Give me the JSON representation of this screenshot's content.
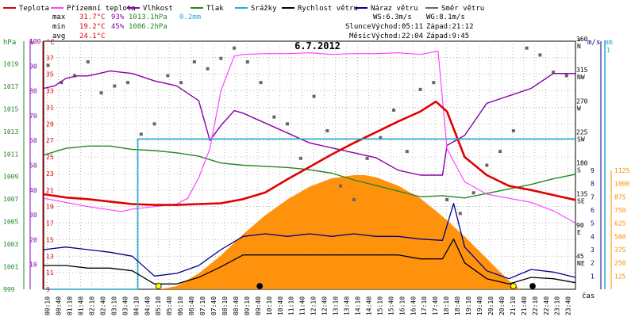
{
  "chart_data": {
    "type": "line",
    "title": "6.7.2012",
    "x_label": "čas",
    "x_ticks": [
      "00:10",
      "00:40",
      "01:10",
      "01:40",
      "02:10",
      "02:40",
      "03:10",
      "03:40",
      "04:10",
      "04:40",
      "05:10",
      "05:40",
      "06:10",
      "06:40",
      "07:10",
      "07:40",
      "08:10",
      "08:40",
      "09:10",
      "09:40",
      "10:10",
      "10:40",
      "11:10",
      "11:40",
      "12:10",
      "12:40",
      "13:10",
      "13:40",
      "14:10",
      "14:40",
      "15:10",
      "15:40",
      "16:10",
      "16:40",
      "17:10",
      "17:40",
      "18:10",
      "18:40",
      "19:10",
      "19:40",
      "20:10",
      "20:40",
      "21:10",
      "21:40",
      "22:10",
      "22:40",
      "23:10",
      "23:40"
    ],
    "legend": [
      {
        "name": "Teplota",
        "color": "#e00000"
      },
      {
        "name": "Přízemní teplota",
        "color": "#ff44ff"
      },
      {
        "name": "Vlhkost",
        "color": "#8800aa"
      },
      {
        "name": "Tlak",
        "color": "#228822"
      },
      {
        "name": "Srážky",
        "color": "#22aacc"
      },
      {
        "name": "Rychlost větru",
        "color": "#000000"
      },
      {
        "name": "Náraz větru",
        "color": "#000088"
      },
      {
        "name": "Směr větru",
        "color": "#666666"
      }
    ],
    "stats": {
      "max": {
        "label": "max",
        "temp": "31.7°C",
        "hum": "93%",
        "press": "1013.1hPa",
        "rain": "0.2mm"
      },
      "min": {
        "label": "min",
        "temp": "19.2°C",
        "hum": "45%",
        "press": "1006.2hPa"
      },
      "avg": {
        "label": "avg",
        "temp": "24.1°C"
      }
    },
    "info": {
      "ws": "WS:6.3m/s",
      "wg": "WG:8.1m/s",
      "sun_label": "Slunce",
      "sun_rise": "Východ:05:11",
      "sun_set": "Západ:21:12",
      "moon_label": "Měsíc",
      "moon_rise": "Východ:22:04",
      "moon_set": "Západ:9:45"
    },
    "axes": {
      "pressure": {
        "unit": "hPa",
        "min": 999,
        "max": 1021,
        "ticks": [
          999,
          1001,
          1003,
          1005,
          1007,
          1009,
          1011,
          1013,
          1015,
          1017,
          1019
        ]
      },
      "humidity": {
        "unit": "%",
        "min": 0,
        "max": 100,
        "ticks": [
          10,
          20,
          30,
          40,
          50,
          60,
          70,
          80,
          90,
          100
        ]
      },
      "temperature": {
        "unit": "°C",
        "min": 9,
        "max": 39,
        "ticks": [
          9,
          11,
          13,
          15,
          17,
          19,
          21,
          23,
          25,
          27,
          29,
          31,
          33,
          35,
          37
        ]
      },
      "direction": {
        "unit": "°",
        "ticks": [
          {
            "v": "45",
            "d": "NE"
          },
          {
            "v": "90",
            "d": "E"
          },
          {
            "v": "135",
            "d": "SE"
          },
          {
            "v": "180",
            "d": "S"
          },
          {
            "v": "225",
            "d": "SW"
          },
          {
            "v": "270",
            "d": "W"
          },
          {
            "v": "315",
            "d": "NW"
          },
          {
            "v": "360",
            "d": "N"
          }
        ]
      },
      "wind": {
        "unit": "m/s",
        "min": 0,
        "max": 9,
        "ticks": [
          1,
          2,
          3,
          4,
          5,
          6,
          7,
          8,
          9
        ]
      },
      "rain": {
        "unit": "mm",
        "max_label": "1"
      },
      "solar": {
        "min": 0,
        "max": 1125,
        "ticks": [
          125,
          250,
          375,
          500,
          625,
          750,
          875,
          1000,
          1125
        ]
      }
    },
    "series": {
      "temperature": {
        "name": "Teplota",
        "color": "#e00000",
        "x": [
          0,
          1,
          2,
          3,
          4,
          5,
          6,
          7,
          8,
          9,
          10,
          11,
          12,
          13,
          14,
          15,
          16,
          17,
          17.7,
          18.2,
          19,
          20,
          21,
          22,
          23,
          24
        ],
        "y": [
          20.5,
          20.1,
          19.9,
          19.6,
          19.3,
          19.2,
          19.2,
          19.3,
          19.4,
          19.9,
          20.7,
          22.3,
          23.8,
          25.3,
          26.7,
          28.0,
          29.3,
          30.5,
          31.7,
          30.5,
          25.0,
          22.8,
          21.5,
          21.0,
          20.4,
          19.8
        ]
      },
      "ground_temperature": {
        "name": "Přízemní teplota",
        "color": "#ff44ff",
        "x": [
          0,
          1,
          2,
          3,
          3.5,
          4,
          5,
          6,
          6.5,
          7,
          7.5,
          8,
          8.6,
          9,
          10,
          11,
          12,
          13,
          14,
          15,
          16,
          17,
          17.8,
          18.2,
          19,
          20,
          21,
          22,
          23,
          24
        ],
        "y": [
          20.0,
          19.5,
          19.0,
          18.6,
          18.4,
          18.7,
          19.0,
          19.3,
          20.0,
          22.5,
          26.0,
          33.0,
          37.2,
          37.4,
          37.5,
          37.5,
          37.6,
          37.4,
          37.5,
          37.5,
          37.6,
          37.4,
          37.8,
          26.0,
          22.0,
          20.5,
          20.0,
          19.5,
          18.5,
          17.0
        ]
      },
      "humidity": {
        "name": "Vlhkost",
        "color": "#8800aa",
        "x": [
          0,
          0.5,
          1,
          1.5,
          2,
          3,
          4,
          5,
          6,
          7,
          7.5,
          8,
          8.6,
          9,
          10,
          11,
          12,
          13,
          14,
          15,
          16,
          17,
          18,
          18.2,
          19,
          20,
          21,
          22,
          23,
          23.5,
          24
        ],
        "y": [
          81,
          82,
          85,
          86,
          86,
          88,
          87,
          84,
          82,
          76,
          60,
          66,
          72,
          71,
          67,
          63,
          59,
          57,
          55,
          53,
          48,
          46,
          46,
          58,
          62,
          75,
          78,
          81,
          87,
          87,
          87
        ]
      },
      "pressure": {
        "name": "Tlak",
        "color": "#228822",
        "x": [
          0,
          1,
          2,
          3,
          4,
          5,
          6,
          7,
          8,
          9,
          10,
          11,
          12,
          13,
          14,
          15,
          16,
          17,
          18,
          19,
          20,
          21,
          22,
          23,
          24
        ],
        "y": [
          1010.9,
          1011.5,
          1011.7,
          1011.7,
          1011.4,
          1011.3,
          1011.1,
          1010.8,
          1010.2,
          1010.0,
          1009.9,
          1009.8,
          1009.6,
          1009.3,
          1008.7,
          1008.2,
          1007.7,
          1007.2,
          1007.3,
          1007.1,
          1007.5,
          1007.9,
          1008.3,
          1008.8,
          1009.2
        ]
      },
      "rain": {
        "name": "Srážky",
        "color": "#22aacc",
        "x": [
          0,
          4.25,
          4.25,
          24
        ],
        "y": [
          0,
          0,
          0.2,
          0.2
        ],
        "unit": "mm"
      },
      "solar": {
        "name": "Solar",
        "color": "#ff8c00",
        "x": [
          0,
          5,
          5.5,
          6,
          7,
          8,
          9,
          10,
          11,
          12,
          13,
          14,
          14.5,
          15,
          16,
          17,
          18,
          19,
          20,
          21,
          21.5,
          24
        ],
        "y": [
          0,
          0,
          10,
          30,
          150,
          320,
          520,
          700,
          850,
          970,
          1050,
          1080,
          1080,
          1060,
          980,
          860,
          690,
          500,
          290,
          80,
          0,
          0
        ]
      },
      "wind_speed": {
        "name": "Rychlost větru",
        "color": "#000000",
        "x": [
          0,
          1,
          2,
          3,
          4,
          5,
          6,
          7,
          8,
          9,
          10,
          11,
          12,
          13,
          14,
          15,
          16,
          17,
          18,
          18.5,
          19,
          20,
          21,
          22,
          23,
          24
        ],
        "y": [
          1.8,
          1.8,
          1.6,
          1.6,
          1.4,
          0.4,
          0.4,
          0.9,
          1.7,
          2.6,
          2.6,
          2.6,
          2.6,
          2.6,
          2.6,
          2.6,
          2.6,
          2.3,
          2.3,
          3.8,
          2.0,
          0.8,
          0.4,
          0.9,
          0.8,
          0.5
        ]
      },
      "wind_gust": {
        "name": "Náraz větru",
        "color": "#000088",
        "x": [
          0,
          1,
          2,
          3,
          4,
          5,
          6,
          7,
          8,
          9,
          10,
          11,
          12,
          13,
          14,
          15,
          16,
          17,
          18,
          18.5,
          19,
          20,
          21,
          22,
          23,
          24
        ],
        "y": [
          3.0,
          3.2,
          3.0,
          2.8,
          2.5,
          1.0,
          1.2,
          1.8,
          3.0,
          4.0,
          4.2,
          4.0,
          4.2,
          4.0,
          4.2,
          4.0,
          4.0,
          3.8,
          3.7,
          6.5,
          3.2,
          1.4,
          0.8,
          1.5,
          1.3,
          0.9
        ]
      },
      "wind_direction": {
        "name": "Směr větru",
        "color": "#666666",
        "x": [
          0.2,
          0.8,
          1.4,
          2.0,
          2.6,
          3.2,
          3.8,
          4.4,
          5.0,
          5.6,
          6.2,
          6.8,
          7.4,
          8.0,
          8.6,
          9.2,
          9.8,
          10.4,
          11.0,
          11.6,
          12.2,
          12.8,
          13.4,
          14.0,
          14.6,
          15.2,
          15.8,
          16.4,
          17.0,
          17.6,
          18.2,
          18.8,
          19.4,
          20.0,
          20.6,
          21.2,
          21.8,
          22.4,
          23.0,
          23.6
        ],
        "y": [
          325,
          300,
          310,
          330,
          285,
          295,
          300,
          225,
          240,
          310,
          300,
          330,
          320,
          335,
          350,
          330,
          300,
          250,
          240,
          190,
          280,
          230,
          150,
          130,
          190,
          220,
          260,
          200,
          290,
          300,
          130,
          110,
          140,
          180,
          200,
          230,
          350,
          340,
          315,
          310
        ]
      }
    }
  }
}
